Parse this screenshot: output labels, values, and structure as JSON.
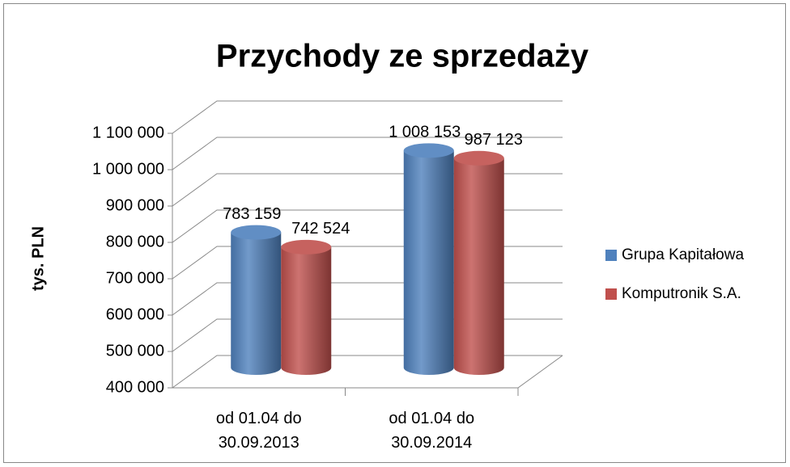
{
  "chart_data": {
    "type": "bar3d",
    "title": "Przychody ze sprzedaży",
    "ylabel": "tys. PLN",
    "categories": [
      "od 01.04 do 30.09.2013",
      "od 01.04 do 30.09.2014"
    ],
    "series": [
      {
        "name": "Grupa Kapitałowa",
        "color": "#4f81bd",
        "values": [
          783159,
          1008153
        ],
        "value_labels": [
          "783 159",
          "1 008 153"
        ]
      },
      {
        "name": "Komputronik S.A.",
        "color": "#c0504d",
        "values": [
          742524,
          987123
        ],
        "value_labels": [
          "742 524",
          "987 123"
        ]
      }
    ],
    "ylim": [
      400000,
      1100000
    ],
    "yticks": [
      {
        "value": 400000,
        "label": "400 000"
      },
      {
        "value": 500000,
        "label": "500 000"
      },
      {
        "value": 600000,
        "label": "600 000"
      },
      {
        "value": 700000,
        "label": "700 000"
      },
      {
        "value": 800000,
        "label": "800 000"
      },
      {
        "value": 900000,
        "label": "900 000"
      },
      {
        "value": 1000000,
        "label": "1 000 000"
      },
      {
        "value": 1100000,
        "label": "1 100 000"
      }
    ],
    "grid": true,
    "legend": "right"
  }
}
